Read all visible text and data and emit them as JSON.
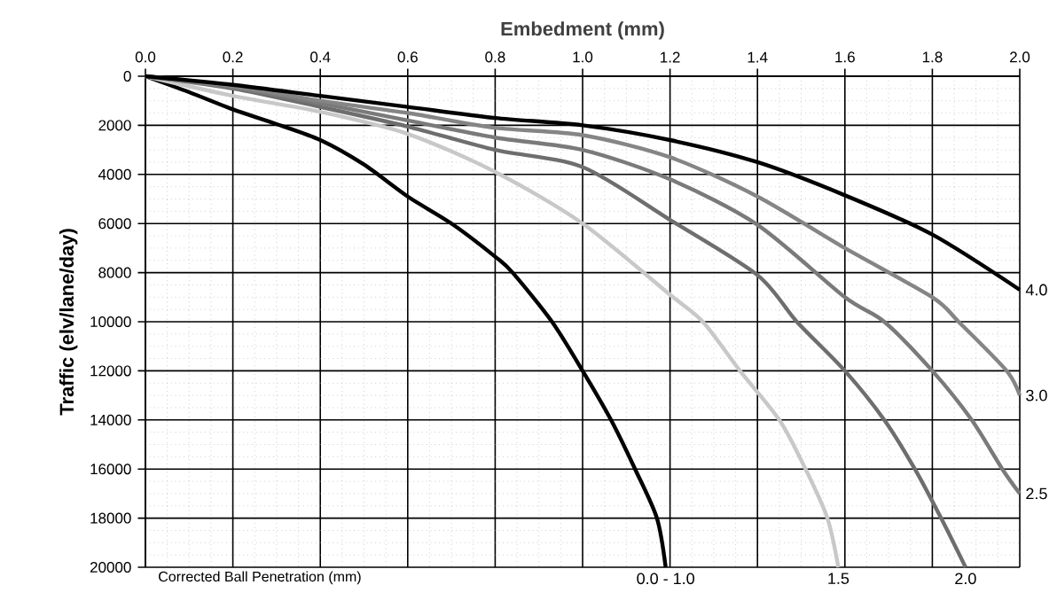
{
  "chart_data": {
    "type": "line",
    "xlabel": "Embedment (mm)",
    "ylabel": "Traffic (elv/lane/day)",
    "annotations": [
      "Corrected  Ball Penetration (mm)"
    ],
    "xlim": [
      0,
      2
    ],
    "ylim": [
      20000,
      0
    ],
    "xticks": [
      {
        "value": 0,
        "label": "0.0"
      },
      {
        "value": 0.2,
        "label": "0.2"
      },
      {
        "value": 0.4,
        "label": "0.4"
      },
      {
        "value": 0.6,
        "label": "0.6"
      },
      {
        "value": 0.8,
        "label": "0.8"
      },
      {
        "value": 1,
        "label": "1.0"
      },
      {
        "value": 1.2,
        "label": "1.2"
      },
      {
        "value": 1.4,
        "label": "1.4"
      },
      {
        "value": 1.6,
        "label": "1.6"
      },
      {
        "value": 1.8,
        "label": "1.8"
      },
      {
        "value": 2,
        "label": "2.0"
      }
    ],
    "yticks": [
      0,
      2000,
      4000,
      6000,
      8000,
      10000,
      12000,
      14000,
      16000,
      18000,
      20000
    ],
    "grid": true,
    "legend": false,
    "marker": "none",
    "line_style": "solid",
    "series": [
      {
        "name": "0.0 - 1.0",
        "color": "#000000",
        "x": [
          0,
          0.1,
          0.2,
          0.3,
          0.4,
          0.5,
          0.6,
          0.7,
          0.8,
          0.84,
          0.93,
          1.0,
          1.065,
          1.12,
          1.17,
          1.19
        ],
        "values": [
          0,
          650,
          1350,
          1950,
          2600,
          3600,
          4900,
          6000,
          7350,
          8000,
          10000,
          12000,
          14000,
          16000,
          18000,
          20000
        ]
      },
      {
        "name": "1.5",
        "color": "#c8c8c8",
        "x": [
          0,
          0.2,
          0.4,
          0.6,
          0.8,
          1.0,
          1.2,
          1.275,
          1.36,
          1.45,
          1.51,
          1.56,
          1.585
        ],
        "values": [
          0,
          800,
          1450,
          2350,
          3900,
          6000,
          8900,
          10000,
          12000,
          14000,
          16000,
          18000,
          20000
        ]
      },
      {
        "name": "2.0",
        "color": "#6e6e6e",
        "x": [
          0,
          0.2,
          0.4,
          0.6,
          0.8,
          1.0,
          1.2,
          1.4,
          1.49,
          1.6,
          1.69,
          1.76,
          1.82,
          1.876
        ],
        "values": [
          0,
          500,
          1250,
          2050,
          3000,
          3700,
          5850,
          8100,
          10000,
          12000,
          14000,
          16000,
          18000,
          20000
        ]
      },
      {
        "name": "2.5",
        "color": "#7a7a7a",
        "x": [
          0,
          0.2,
          0.4,
          0.6,
          0.8,
          1.0,
          1.2,
          1.4,
          1.6,
          1.69,
          1.8,
          1.89,
          1.96,
          2.0
        ],
        "values": [
          0,
          450,
          1100,
          1800,
          2500,
          3000,
          4200,
          6050,
          9000,
          10000,
          12000,
          14000,
          16000,
          17000
        ]
      },
      {
        "name": "3.0",
        "color": "#858585",
        "x": [
          0,
          0.2,
          0.4,
          0.6,
          0.8,
          1.0,
          1.2,
          1.4,
          1.6,
          1.8,
          1.86,
          1.97,
          2.0
        ],
        "values": [
          0,
          400,
          1000,
          1500,
          2100,
          2400,
          3300,
          4900,
          7000,
          9000,
          10000,
          12000,
          13000
        ]
      },
      {
        "name": "4.0",
        "color": "#000000",
        "x": [
          0,
          0.2,
          0.4,
          0.6,
          0.8,
          1.0,
          1.2,
          1.4,
          1.6,
          1.8,
          2.0
        ],
        "values": [
          0,
          350,
          800,
          1250,
          1700,
          2000,
          2600,
          3500,
          4850,
          6450,
          8700
        ]
      }
    ]
  }
}
